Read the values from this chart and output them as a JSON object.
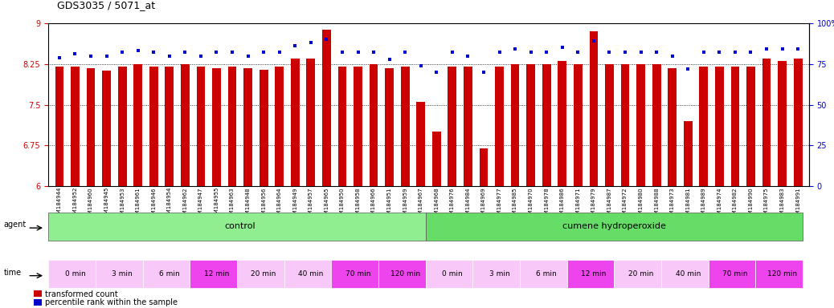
{
  "title": "GDS3035 / 5071_at",
  "bar_color": "#cc0000",
  "dot_color": "#0000cc",
  "ylim_left": [
    6,
    9
  ],
  "ylim_right": [
    0,
    100
  ],
  "yticks_left": [
    6,
    6.75,
    7.5,
    8.25,
    9
  ],
  "yticks_right": [
    0,
    25,
    50,
    75,
    100
  ],
  "ytick_labels_right": [
    "0",
    "25",
    "50",
    "75",
    "100%"
  ],
  "samples": [
    "GSM184944",
    "GSM184952",
    "GSM184960",
    "GSM184945",
    "GSM184953",
    "GSM184961",
    "GSM184946",
    "GSM184954",
    "GSM184962",
    "GSM184947",
    "GSM184955",
    "GSM184963",
    "GSM184948",
    "GSM184956",
    "GSM184964",
    "GSM184949",
    "GSM184957",
    "GSM184965",
    "GSM184950",
    "GSM184958",
    "GSM184966",
    "GSM184951",
    "GSM184959",
    "GSM184967",
    "GSM184968",
    "GSM184976",
    "GSM184984",
    "GSM184969",
    "GSM184977",
    "GSM184985",
    "GSM184970",
    "GSM184978",
    "GSM184986",
    "GSM184971",
    "GSM184979",
    "GSM184987",
    "GSM184972",
    "GSM184980",
    "GSM184988",
    "GSM184973",
    "GSM184981",
    "GSM184989",
    "GSM184974",
    "GSM184982",
    "GSM184990",
    "GSM184975",
    "GSM184983",
    "GSM184991"
  ],
  "bar_values": [
    8.2,
    8.2,
    8.17,
    8.12,
    8.2,
    8.25,
    8.2,
    8.2,
    8.25,
    8.2,
    8.17,
    8.2,
    8.17,
    8.14,
    8.2,
    8.35,
    8.35,
    8.88,
    8.2,
    8.2,
    8.25,
    8.17,
    8.2,
    7.55,
    7.0,
    8.2,
    8.2,
    6.7,
    8.2,
    8.25,
    8.25,
    8.25,
    8.3,
    8.25,
    8.85,
    8.25,
    8.25,
    8.25,
    8.25,
    8.17,
    7.2,
    8.2,
    8.2,
    8.2,
    8.2,
    8.35,
    8.3,
    8.35
  ],
  "dot_values": [
    79,
    81,
    80,
    80,
    82,
    83,
    82,
    80,
    82,
    80,
    82,
    82,
    80,
    82,
    82,
    86,
    88,
    90,
    82,
    82,
    82,
    78,
    82,
    74,
    70,
    82,
    80,
    70,
    82,
    84,
    82,
    82,
    85,
    82,
    89,
    82,
    82,
    82,
    82,
    80,
    72,
    82,
    82,
    82,
    82,
    84,
    84,
    84
  ],
  "time_colors": [
    "#f8c8f8",
    "#f8c8f8",
    "#f8c8f8",
    "#ee44ee",
    "#f8c8f8",
    "#f8c8f8",
    "#ee44ee",
    "#ee44ee"
  ],
  "background_color": "#ffffff"
}
